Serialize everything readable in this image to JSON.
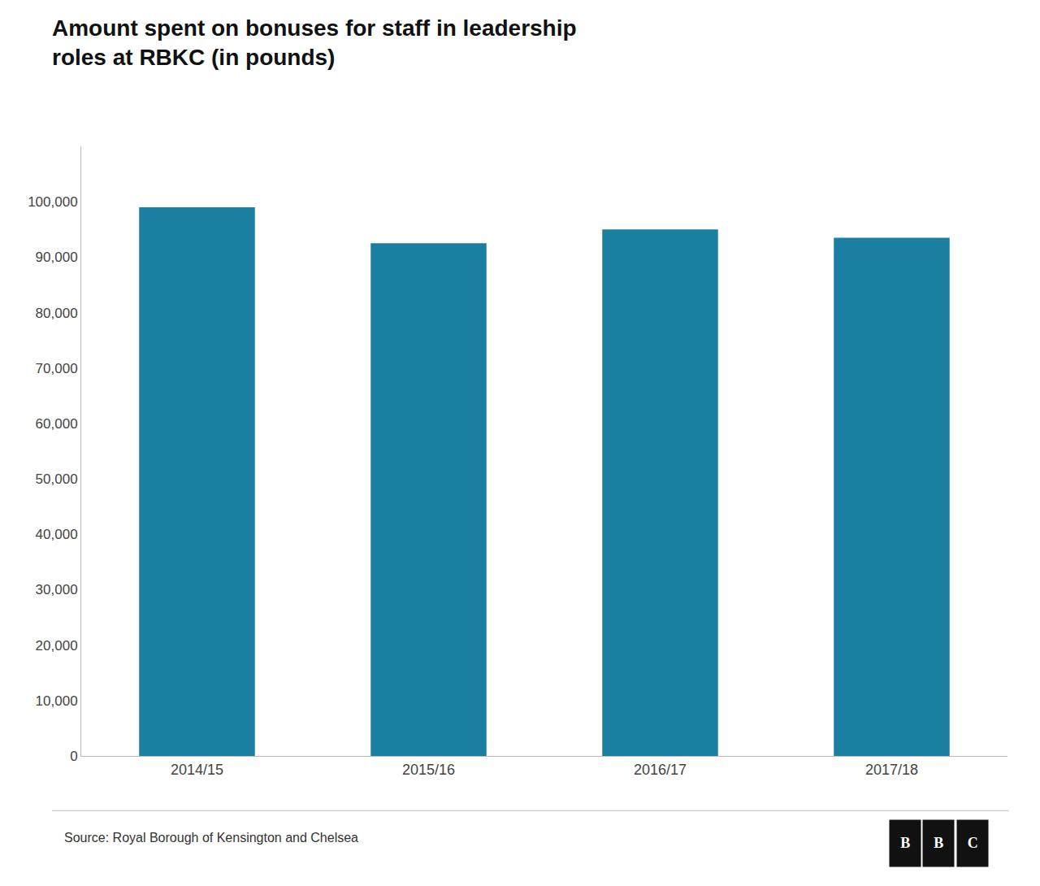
{
  "chart_data": {
    "type": "bar",
    "title": "Amount spent on bonuses for staff in leadership\nroles at RBKC (in pounds)",
    "categories": [
      "2014/15",
      "2015/16",
      "2016/17",
      "2017/18"
    ],
    "values": [
      99000,
      92500,
      95000,
      93500
    ],
    "color": "#1a7fa0",
    "ylim": [
      0,
      110000
    ],
    "yticks": [
      0,
      {
        "value": 10000,
        "label": "10,000"
      },
      {
        "value": 20000,
        "label": "20,000"
      },
      {
        "value": 30000,
        "label": "30,000"
      },
      {
        "value": 40000,
        "label": "40,000"
      },
      {
        "value": 50000,
        "label": "50,000"
      },
      {
        "value": 60000,
        "label": "60,000"
      },
      {
        "value": 70000,
        "label": "70,000"
      },
      {
        "value": 80000,
        "label": "80,000"
      },
      {
        "value": 90000,
        "label": "90,000"
      },
      {
        "value": 100000,
        "label": "100,000"
      }
    ],
    "grid": false,
    "annotations": [
      "Source: Royal Borough of Kensington and Chelsea",
      "BBC"
    ]
  }
}
